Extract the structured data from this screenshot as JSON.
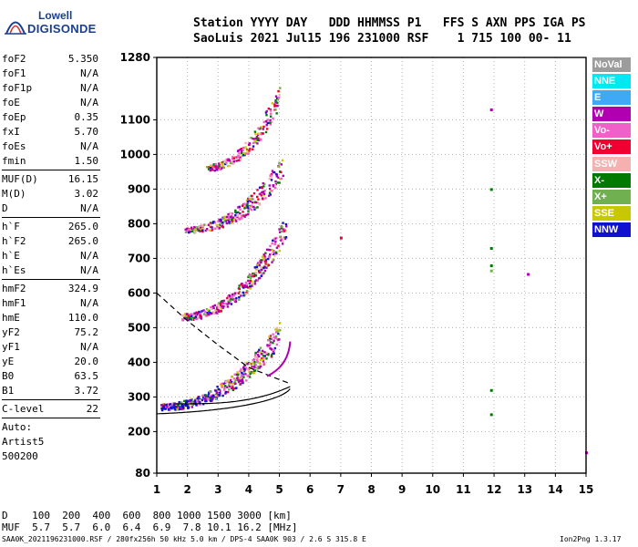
{
  "logo": {
    "line1": "Lowell",
    "line2": "DIGISONDE"
  },
  "header": {
    "line1": "Station YYYY DAY   DDD HHMMSS P1   FFS S AXN PPS IGA PS",
    "line2": "SaoLuis 2021 Jul15 196 231000 RSF    1 715 100 00- 11"
  },
  "params": [
    {
      "name": "foF2",
      "value": "5.350"
    },
    {
      "name": "foF1",
      "value": "N/A"
    },
    {
      "name": "foF1p",
      "value": "N/A"
    },
    {
      "name": "foE",
      "value": "N/A"
    },
    {
      "name": "foEp",
      "value": "0.35"
    },
    {
      "name": "fxI",
      "value": "5.70"
    },
    {
      "name": "foEs",
      "value": "N/A"
    },
    {
      "name": "fmin",
      "value": "1.50"
    },
    {
      "sep": true
    },
    {
      "name": "MUF(D)",
      "value": "16.15"
    },
    {
      "name": "M(D)",
      "value": "3.02"
    },
    {
      "name": "D",
      "value": "N/A"
    },
    {
      "sep": true
    },
    {
      "name": "h`F",
      "value": "265.0"
    },
    {
      "name": "h`F2",
      "value": "265.0"
    },
    {
      "name": "h`E",
      "value": "N/A"
    },
    {
      "name": "h`Es",
      "value": "N/A"
    },
    {
      "sep": true
    },
    {
      "name": "hmF2",
      "value": "324.9"
    },
    {
      "name": "hmF1",
      "value": "N/A"
    },
    {
      "name": "hmE",
      "value": "110.0"
    },
    {
      "name": "yF2",
      "value": "75.2"
    },
    {
      "name": "yF1",
      "value": "N/A"
    },
    {
      "name": "yE",
      "value": "20.0"
    },
    {
      "name": "B0",
      "value": "63.5"
    },
    {
      "name": "B1",
      "value": "3.72"
    },
    {
      "sep": true
    },
    {
      "name": "C-level",
      "value": "22"
    },
    {
      "sep": true
    },
    {
      "name": "Auto:",
      "value": ""
    },
    {
      "name": "Artist5",
      "value": ""
    },
    {
      "name": "500200",
      "value": ""
    }
  ],
  "legend": [
    {
      "label": "NoVal",
      "color": "#9c9c9c"
    },
    {
      "label": "NNE",
      "color": "#00e8f0"
    },
    {
      "label": "E",
      "color": "#3fa9f5"
    },
    {
      "label": "W",
      "color": "#b000b0"
    },
    {
      "label": "Vo-",
      "color": "#f060c8"
    },
    {
      "label": "Vo+",
      "color": "#f00030"
    },
    {
      "label": "SSW",
      "color": "#f5b0b0"
    },
    {
      "label": "X-",
      "color": "#007a00"
    },
    {
      "label": "X+",
      "color": "#70b050"
    },
    {
      "label": "SSE",
      "color": "#c8c800"
    },
    {
      "label": "NNW",
      "color": "#1010d0"
    }
  ],
  "bottom": {
    "line1": "D    100  200  400  600  800 1000 1500 3000 [km]",
    "line2": "MUF  5.7  5.7  6.0  6.4  6.9  7.8 10.1 16.2 [MHz]"
  },
  "footer": {
    "left": "SAA0K_2021196231000.RSF / 280fx256h 50 kHz 5.0 km / DPS-4 SAA0K 903 / 2.6 S 315.8 E",
    "right": "Ion2Png 1.3.17"
  },
  "chart_data": {
    "type": "scatter",
    "title": "",
    "xlabel": "",
    "ylabel": "",
    "xlim": [
      1,
      15
    ],
    "ylim": [
      80,
      1280
    ],
    "x_ticks": [
      1,
      2,
      3,
      4,
      5,
      6,
      7,
      8,
      9,
      10,
      11,
      12,
      13,
      14,
      15
    ],
    "y_ticks": [
      80,
      200,
      300,
      400,
      500,
      600,
      700,
      800,
      900,
      1000,
      1100,
      1280
    ],
    "grid": true,
    "traces": [
      {
        "name": "F-layer 1 hop",
        "x_range": [
          1.1,
          5.0
        ],
        "y_start": 270,
        "y_end": 470,
        "min_height": 265,
        "color": "#b000b0"
      },
      {
        "name": "F-layer 2 hop",
        "x_range": [
          1.8,
          5.2
        ],
        "y_start": 530,
        "y_end": 780,
        "color": "#b000b0"
      },
      {
        "name": "F-layer 3 hop",
        "x_range": [
          1.9,
          5.1
        ],
        "y_start": 780,
        "y_end": 950,
        "color": "#b000b0"
      },
      {
        "name": "F-layer 4 hop",
        "x_range": [
          2.6,
          5.0
        ],
        "y_start": 960,
        "y_end": 1160,
        "color": "#b000b0"
      }
    ],
    "profile_curve": {
      "foF2": 5.35,
      "hmF2": 324.9,
      "base_height": 240
    },
    "dashed_curve": [
      [
        1.0,
        600
      ],
      [
        2.0,
        520
      ],
      [
        3.0,
        450
      ],
      [
        4.0,
        385
      ],
      [
        5.0,
        350
      ],
      [
        5.3,
        340
      ]
    ],
    "isolated_points": [
      {
        "x": 11.9,
        "y": 1130,
        "color": "#b000b0"
      },
      {
        "x": 11.9,
        "y": 900,
        "color": "#007a00"
      },
      {
        "x": 11.9,
        "y": 730,
        "color": "#007a00"
      },
      {
        "x": 11.9,
        "y": 680,
        "color": "#007a00"
      },
      {
        "x": 11.9,
        "y": 665,
        "color": "#70b050"
      },
      {
        "x": 11.9,
        "y": 320,
        "color": "#007a00"
      },
      {
        "x": 11.9,
        "y": 250,
        "color": "#007a00"
      },
      {
        "x": 13.1,
        "y": 655,
        "color": "#b000b0"
      },
      {
        "x": 7.0,
        "y": 760,
        "color": "#f00030"
      },
      {
        "x": 15.0,
        "y": 140,
        "color": "#b000b0"
      }
    ]
  }
}
